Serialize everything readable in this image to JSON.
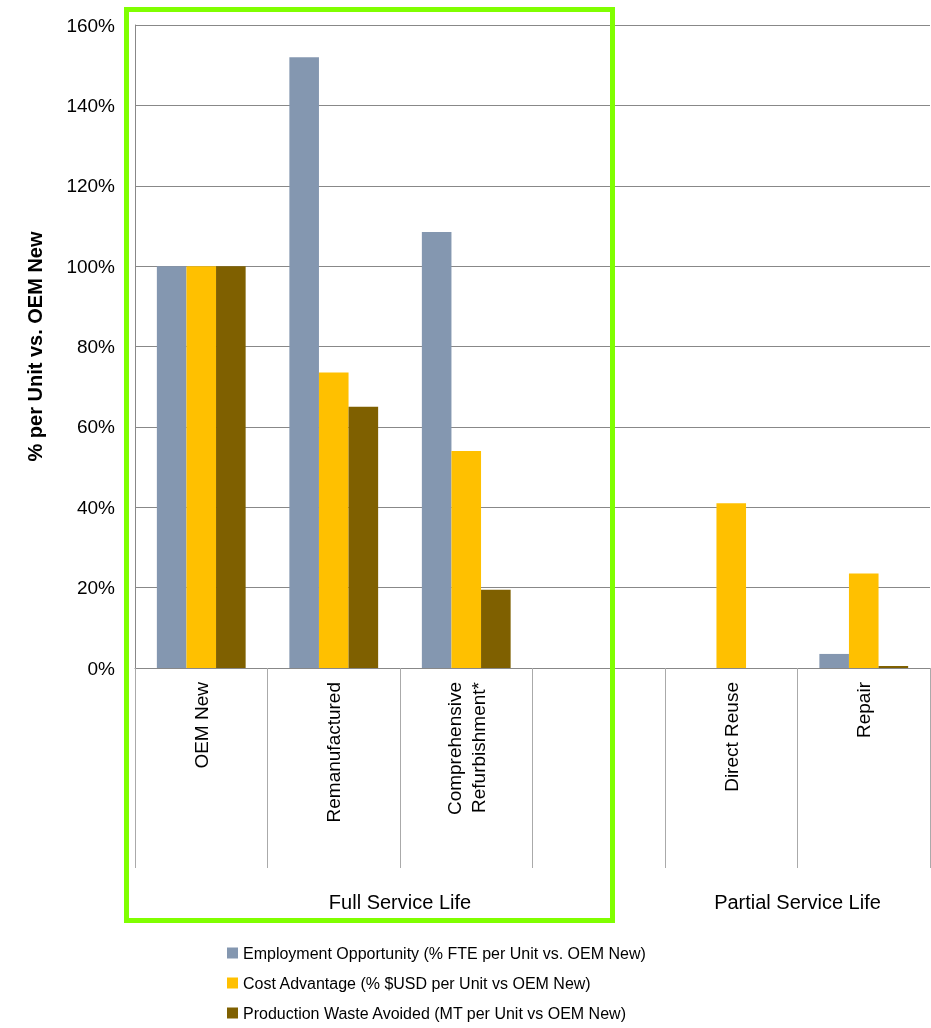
{
  "chart_data": {
    "type": "bar",
    "ylabel": "% per Unit vs. OEM New",
    "categories": [
      "OEM New",
      "Remanufactured",
      "Comprehensive\nRefurbishment*",
      null,
      "Direct Reuse",
      "Repair"
    ],
    "series": [
      {
        "name": "Employment Opportunity (% FTE per Unit vs. OEM New)",
        "color": "#8497b0",
        "values": [
          100,
          152,
          108.5,
          null,
          null,
          3.5
        ]
      },
      {
        "name": "Cost Advantage (% $USD per Unit vs OEM New)",
        "color": "#ffc000",
        "values": [
          100,
          73.5,
          54,
          null,
          41,
          23.5
        ]
      },
      {
        "name": "Production Waste Avoided (MT per Unit vs OEM New)",
        "color": "#7f6000",
        "values": [
          100,
          65,
          19.5,
          null,
          null,
          0.5
        ]
      }
    ],
    "ylim": [
      0,
      160
    ],
    "yticks": [
      {
        "value": 0,
        "label": "0%"
      },
      {
        "value": 20,
        "label": "20%"
      },
      {
        "value": 40,
        "label": "40%"
      },
      {
        "value": 60,
        "label": "60%"
      },
      {
        "value": 80,
        "label": "80%"
      },
      {
        "value": 100,
        "label": "100%"
      },
      {
        "value": 120,
        "label": "120%"
      },
      {
        "value": 140,
        "label": "140%"
      },
      {
        "value": 160,
        "label": "160%"
      }
    ],
    "grid": "y",
    "legend": "bottom",
    "annotations": [
      "Full Service Life",
      "Partial Service Life"
    ]
  }
}
